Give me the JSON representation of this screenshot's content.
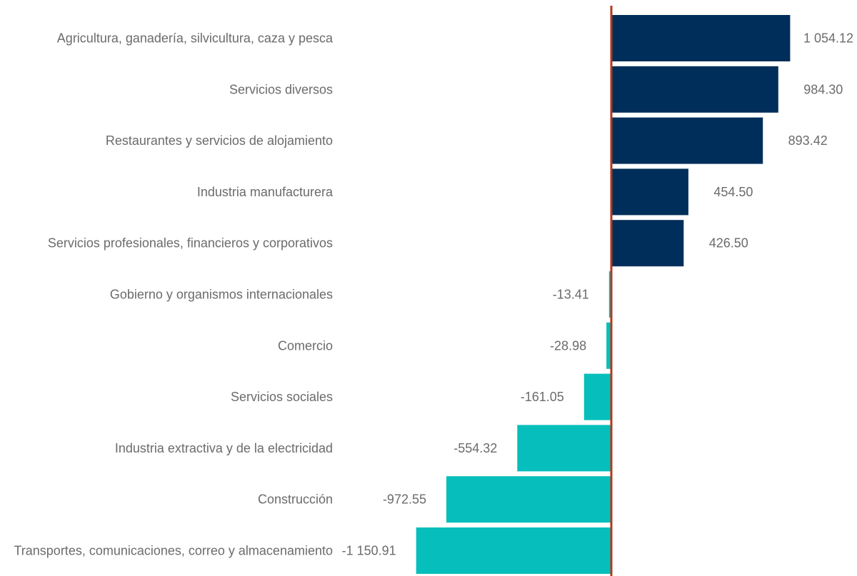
{
  "chart_data": {
    "type": "bar",
    "orientation": "horizontal",
    "categories": [
      "Agricultura, ganadería, silvicultura, caza y pesca",
      "Servicios diversos",
      "Restaurantes y servicios de alojamiento",
      "Industria manufacturera",
      "Servicios profesionales, financieros y corporativos",
      "Gobierno y organismos internacionales",
      "Comercio",
      "Servicios sociales",
      "Industria extractiva y de la electricidad",
      "Construcción",
      "Transportes, comunicaciones, correo y almacenamiento"
    ],
    "values": [
      1054.12,
      984.3,
      893.42,
      454.5,
      426.5,
      -13.41,
      -28.98,
      -161.05,
      -554.32,
      -972.55,
      -1150.91
    ],
    "value_labels": [
      "1 054.12",
      "984.30",
      "893.42",
      "454.50",
      "426.50",
      "-13.41",
      "-28.98",
      "-161.05",
      "-554.32",
      "-972.55",
      "-1 150.91"
    ],
    "title": "",
    "xlabel": "",
    "ylabel": "",
    "xlim": [
      -1275,
      1290
    ],
    "grid": false,
    "legend": "none",
    "colors": {
      "positive": "#002e5a",
      "negative": "#06bfbc",
      "zero_line": "#b5381c",
      "text": "#6b6b6b"
    }
  }
}
